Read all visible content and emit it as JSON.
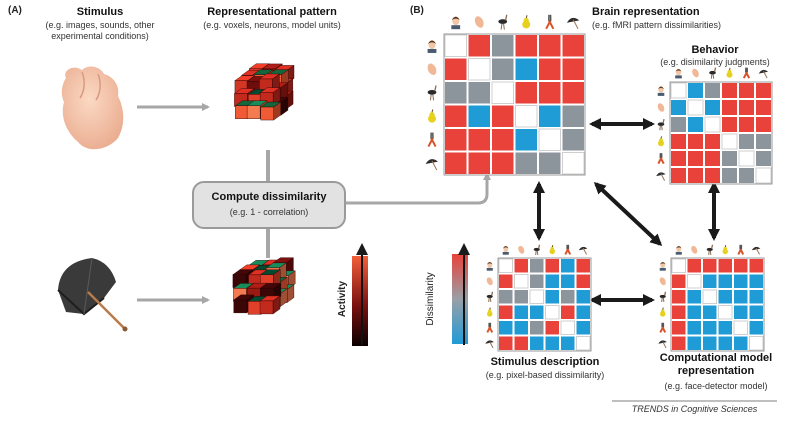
{
  "panels": {
    "a": "(A)",
    "b": "(B)"
  },
  "stimulus": {
    "title": "Stimulus",
    "desc": "(e.g. images, sounds, other experimental conditions)"
  },
  "repr_pattern": {
    "title": "Representational pattern",
    "desc": "(e.g. voxels, neurons, model units)"
  },
  "compute": {
    "title": "Compute dissimilarity",
    "desc": "(e.g. 1 - correlation)"
  },
  "activity_label": "Activity",
  "dissimilarity_label": "Dissimilarity",
  "brain": {
    "title": "Brain representation",
    "desc": "(e.g. fMRI pattern dissimilarities)"
  },
  "behavior": {
    "title": "Behavior",
    "desc": "(e.g. disimilarity judgments)"
  },
  "stim_desc": {
    "title": "Stimulus description",
    "desc": "(e.g. pixel-based dissimilarity)"
  },
  "comp_model": {
    "title": "Computational model representation",
    "desc": "(e.g. face-detector model)"
  },
  "source": "TRENDS in Cognitive Sciences",
  "colors": {
    "red": "#e8423a",
    "blue": "#1f9bd6",
    "gray": "#8d959c",
    "arrow_gray": "#a7a7a7",
    "arrow_black": "#1a1a1a"
  },
  "icons": [
    "face-icon",
    "hand-icon",
    "ostrich-icon",
    "pear-icon",
    "pliers-icon",
    "umbrella-icon"
  ],
  "matrices": {
    "brain": [
      [
        "w",
        "r",
        "g",
        "r",
        "r",
        "r"
      ],
      [
        "r",
        "w",
        "g",
        "b",
        "r",
        "r"
      ],
      [
        "g",
        "g",
        "w",
        "r",
        "r",
        "r"
      ],
      [
        "r",
        "b",
        "r",
        "w",
        "b",
        "g"
      ],
      [
        "r",
        "r",
        "r",
        "b",
        "w",
        "g"
      ],
      [
        "r",
        "r",
        "r",
        "g",
        "g",
        "w"
      ]
    ],
    "behavior": [
      [
        "w",
        "b",
        "g",
        "r",
        "r",
        "r"
      ],
      [
        "b",
        "w",
        "b",
        "r",
        "r",
        "r"
      ],
      [
        "g",
        "b",
        "w",
        "r",
        "r",
        "r"
      ],
      [
        "r",
        "r",
        "r",
        "w",
        "g",
        "g"
      ],
      [
        "r",
        "r",
        "r",
        "g",
        "w",
        "g"
      ],
      [
        "r",
        "r",
        "r",
        "g",
        "g",
        "w"
      ]
    ],
    "stim_desc": [
      [
        "w",
        "r",
        "g",
        "r",
        "b",
        "r"
      ],
      [
        "r",
        "w",
        "g",
        "b",
        "b",
        "r"
      ],
      [
        "g",
        "g",
        "w",
        "b",
        "g",
        "b"
      ],
      [
        "r",
        "b",
        "b",
        "w",
        "r",
        "b"
      ],
      [
        "b",
        "b",
        "g",
        "r",
        "w",
        "b"
      ],
      [
        "r",
        "r",
        "b",
        "b",
        "b",
        "w"
      ]
    ],
    "comp_model": [
      [
        "w",
        "r",
        "r",
        "r",
        "r",
        "r"
      ],
      [
        "r",
        "w",
        "b",
        "b",
        "b",
        "b"
      ],
      [
        "r",
        "b",
        "w",
        "b",
        "b",
        "b"
      ],
      [
        "r",
        "b",
        "b",
        "w",
        "b",
        "b"
      ],
      [
        "r",
        "b",
        "b",
        "b",
        "w",
        "b"
      ],
      [
        "r",
        "b",
        "b",
        "b",
        "b",
        "w"
      ]
    ]
  }
}
